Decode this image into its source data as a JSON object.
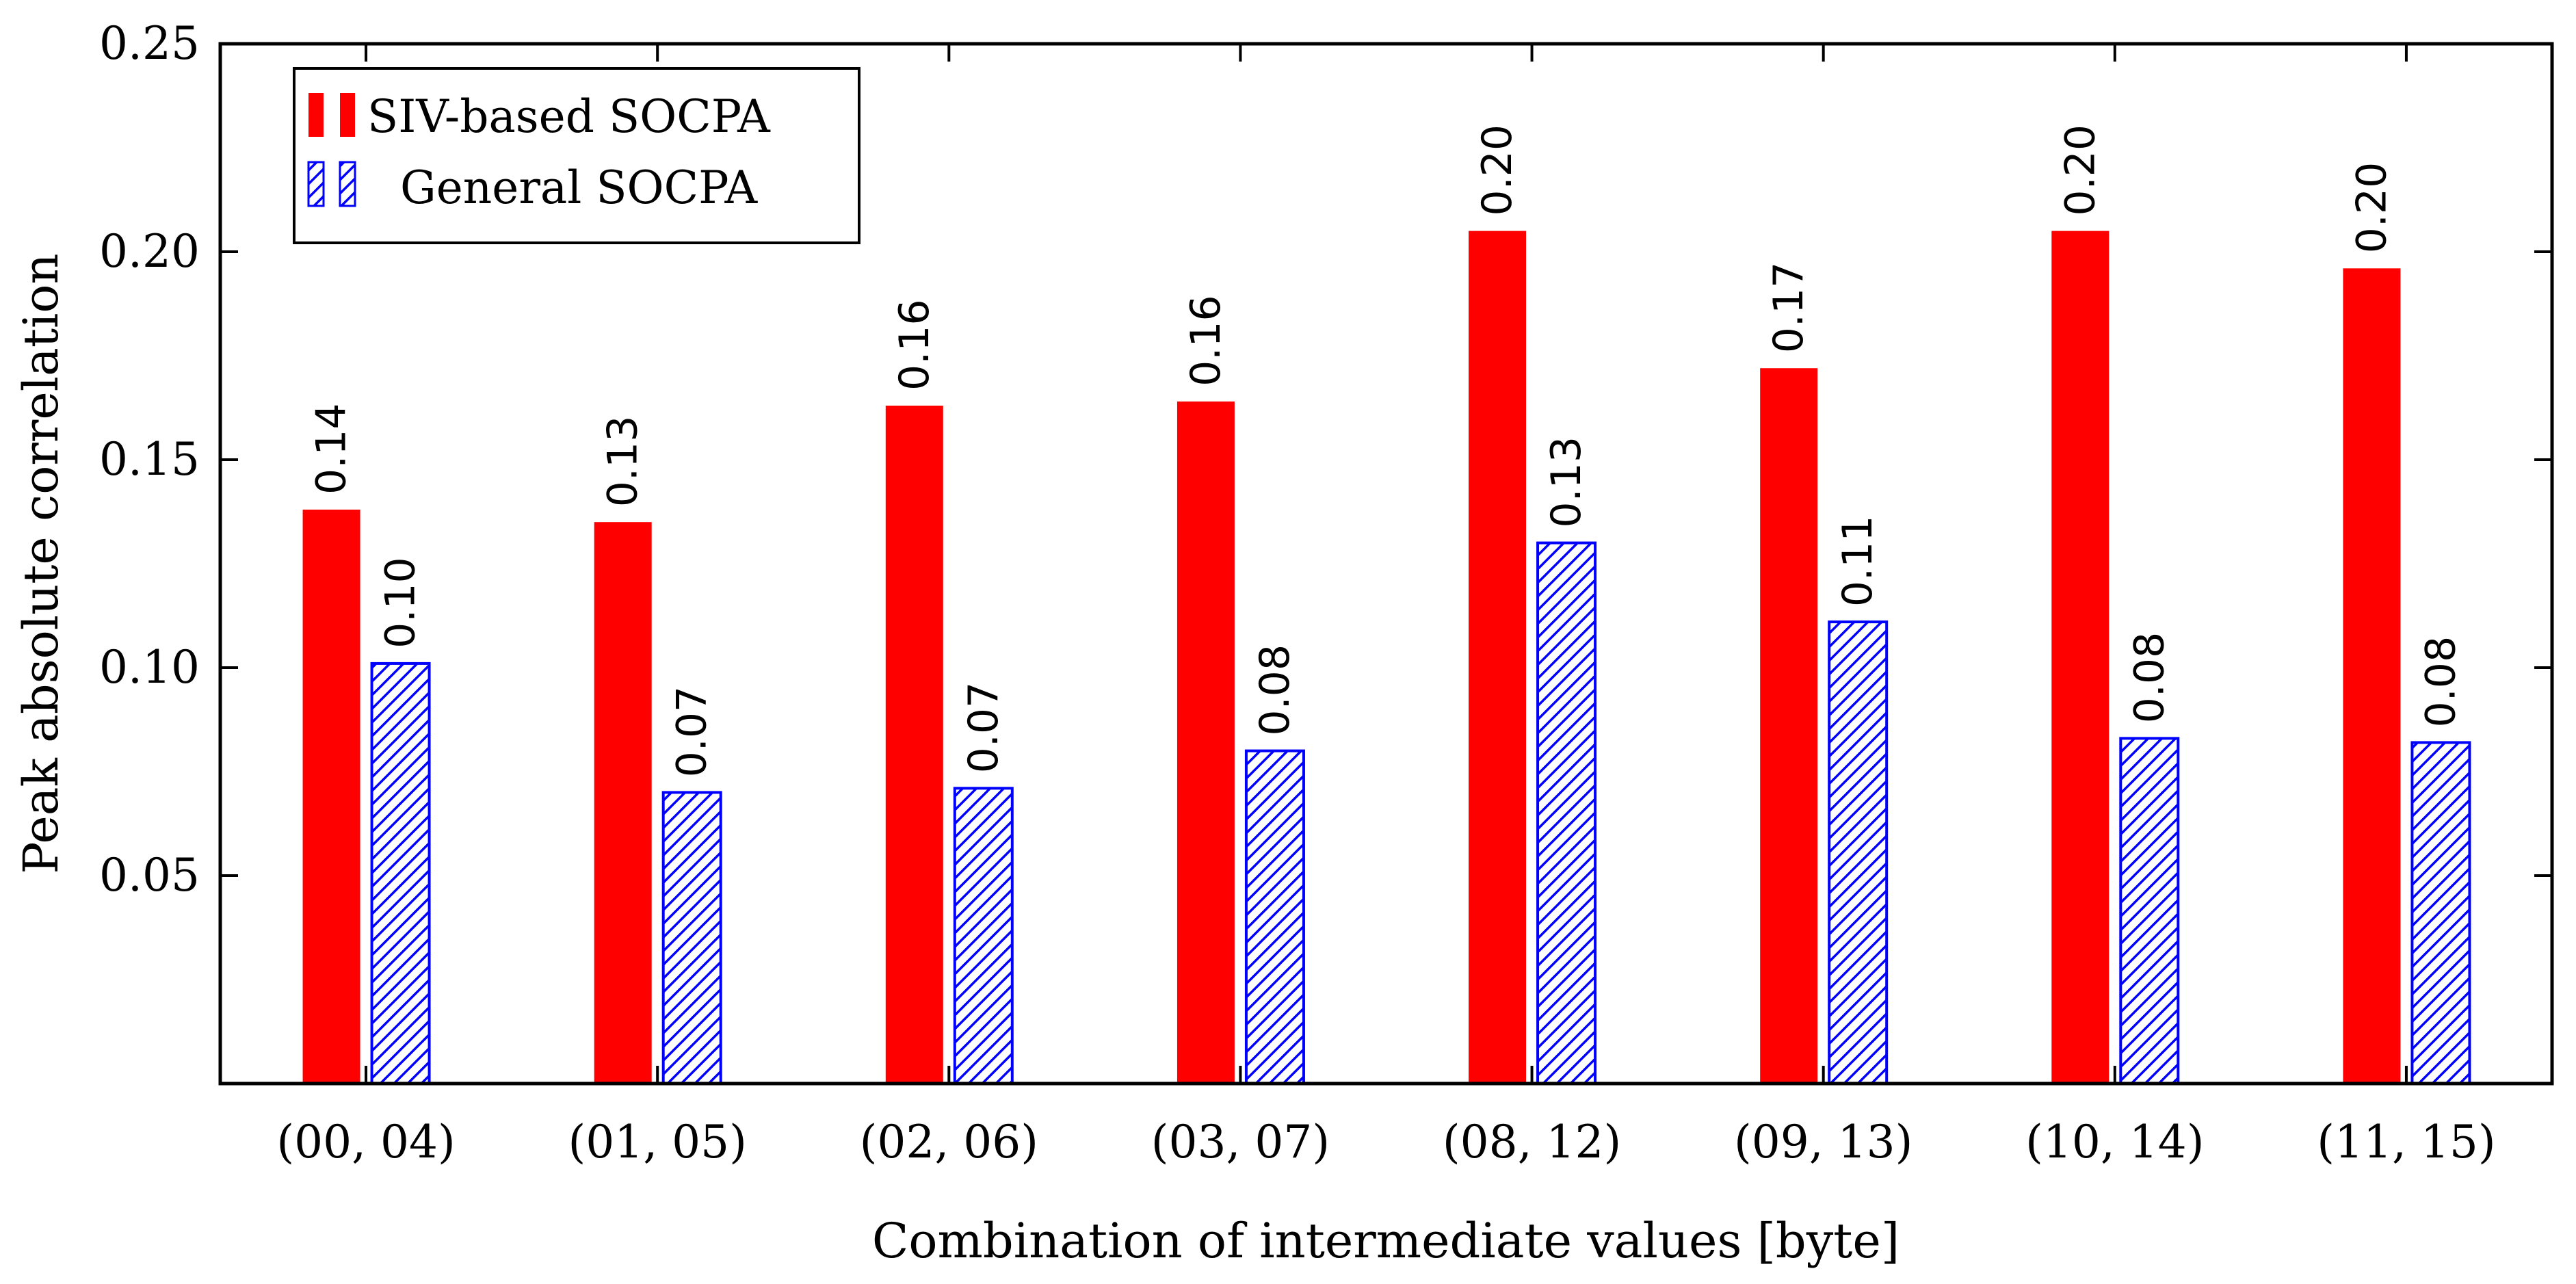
{
  "chart_data": {
    "type": "bar",
    "categories": [
      "(00, 04)",
      "(01, 05)",
      "(02, 06)",
      "(03, 07)",
      "(08, 12)",
      "(09, 13)",
      "(10, 14)",
      "(11, 15)"
    ],
    "series": [
      {
        "name": "SIV-based SOCPA",
        "color": "#ff0000",
        "pattern": "solid",
        "values": [
          0.138,
          0.135,
          0.163,
          0.164,
          0.205,
          0.172,
          0.205,
          0.196
        ],
        "labels": [
          "0.14",
          "0.13",
          "0.16",
          "0.16",
          "0.20",
          "0.17",
          "0.20",
          "0.20"
        ]
      },
      {
        "name": "General SOCPA",
        "color": "#0000ff",
        "pattern": "north-east-lines",
        "values": [
          0.101,
          0.07,
          0.071,
          0.08,
          0.13,
          0.111,
          0.083,
          0.082
        ],
        "labels": [
          "0.10",
          "0.07",
          "0.07",
          "0.08",
          "0.13",
          "0.11",
          "0.08",
          "0.08"
        ]
      }
    ],
    "title": "",
    "xlabel": "Combination of intermediate values [byte]",
    "ylabel": "Peak absolute correlation",
    "ylim": [
      0,
      0.25
    ],
    "yticks": [
      0.05,
      0.1,
      0.15,
      0.2,
      0.25
    ],
    "ytick_labels": [
      "0.05",
      "0.10",
      "0.15",
      "0.20",
      "0.25"
    ],
    "legend_position": "top-left",
    "grid": false
  }
}
